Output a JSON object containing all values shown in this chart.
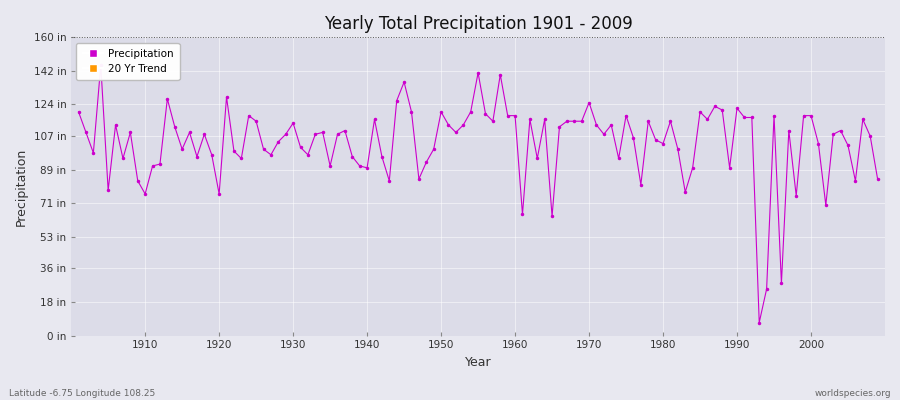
{
  "title": "Yearly Total Precipitation 1901 - 2009",
  "xlabel": "Year",
  "ylabel": "Precipitation",
  "subtitle_lat": "Latitude -6.75 Longitude 108.25",
  "watermark": "worldspecies.org",
  "line_color": "#cc00cc",
  "trend_color": "#ff9900",
  "fig_bg_color": "#e8e8f0",
  "plot_bg_color": "#dcdce8",
  "ylim": [
    0,
    160
  ],
  "xlim": [
    1900,
    2010
  ],
  "yticks": [
    0,
    18,
    36,
    53,
    71,
    89,
    107,
    124,
    142,
    160
  ],
  "ytick_labels": [
    "0 in",
    "18 in",
    "36 in",
    "53 in",
    "71 in",
    "89 in",
    "107 in",
    "124 in",
    "142 in",
    "160 in"
  ],
  "xticks": [
    1910,
    1920,
    1930,
    1940,
    1950,
    1960,
    1970,
    1980,
    1990,
    2000
  ],
  "years": [
    1901,
    1902,
    1903,
    1904,
    1905,
    1906,
    1907,
    1908,
    1909,
    1910,
    1911,
    1912,
    1913,
    1914,
    1915,
    1916,
    1917,
    1918,
    1919,
    1920,
    1921,
    1922,
    1923,
    1924,
    1925,
    1926,
    1927,
    1928,
    1929,
    1930,
    1931,
    1932,
    1933,
    1934,
    1935,
    1936,
    1937,
    1938,
    1939,
    1940,
    1941,
    1942,
    1943,
    1944,
    1945,
    1946,
    1947,
    1948,
    1949,
    1950,
    1951,
    1952,
    1953,
    1954,
    1955,
    1956,
    1957,
    1958,
    1959,
    1960,
    1961,
    1962,
    1963,
    1964,
    1965,
    1966,
    1967,
    1968,
    1969,
    1970,
    1971,
    1972,
    1973,
    1974,
    1975,
    1976,
    1977,
    1978,
    1979,
    1980,
    1981,
    1982,
    1983,
    1984,
    1985,
    1986,
    1987,
    1988,
    1989,
    1990,
    1991,
    1992,
    1993,
    1994,
    1995,
    1996,
    1997,
    1998,
    1999,
    2000,
    2001,
    2002,
    2003,
    2004,
    2005,
    2006,
    2007,
    2008,
    2009
  ],
  "values": [
    120,
    109,
    98,
    145,
    78,
    113,
    95,
    109,
    83,
    76,
    91,
    92,
    127,
    112,
    100,
    109,
    96,
    108,
    97,
    76,
    128,
    99,
    95,
    118,
    115,
    100,
    97,
    104,
    108,
    114,
    101,
    97,
    108,
    109,
    91,
    108,
    110,
    96,
    91,
    90,
    116,
    96,
    83,
    126,
    136,
    120,
    84,
    93,
    100,
    120,
    113,
    109,
    113,
    120,
    141,
    119,
    115,
    140,
    118,
    118,
    65,
    116,
    95,
    116,
    64,
    112,
    115,
    115,
    115,
    125,
    113,
    108,
    113,
    95,
    118,
    106,
    81,
    115,
    105,
    103,
    115,
    100,
    77,
    90,
    120,
    116,
    123,
    121,
    90,
    122,
    117,
    117,
    7,
    25,
    118,
    28,
    110,
    75,
    118,
    118,
    103,
    70,
    108,
    110,
    102,
    83,
    116,
    107,
    84
  ]
}
